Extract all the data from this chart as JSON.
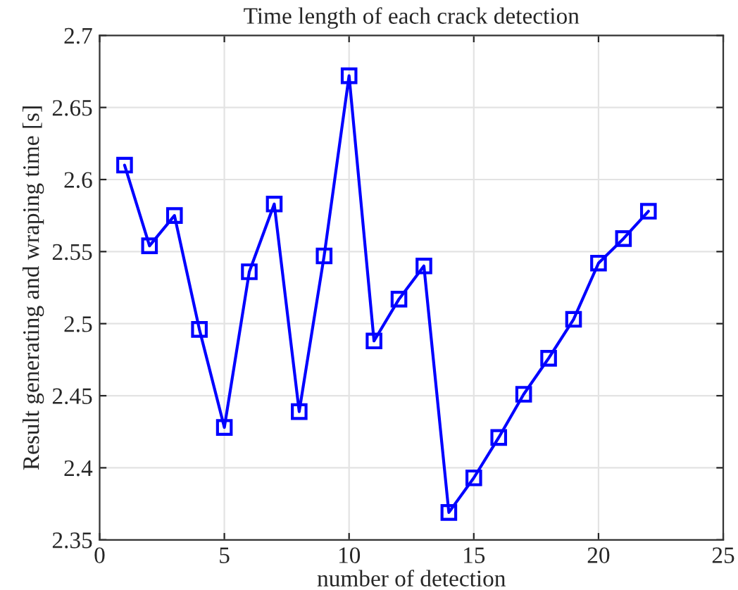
{
  "chart_data": {
    "type": "line",
    "title": "Time length of each crack detection",
    "xlabel": "number of detection",
    "ylabel": "Result generating and wraping time [s]",
    "x": [
      1,
      2,
      3,
      4,
      5,
      6,
      7,
      8,
      9,
      10,
      11,
      12,
      13,
      14,
      15,
      16,
      17,
      18,
      19,
      20,
      21,
      22
    ],
    "series": [
      {
        "color": "#0000ff",
        "values": [
          2.61,
          2.554,
          2.575,
          2.496,
          2.428,
          2.536,
          2.583,
          2.439,
          2.547,
          2.672,
          2.488,
          2.517,
          2.54,
          2.369,
          2.393,
          2.421,
          2.451,
          2.476,
          2.503,
          2.542,
          2.559,
          2.578
        ]
      }
    ],
    "xlim": [
      0,
      25
    ],
    "xticks": [
      0,
      5,
      10,
      15,
      20,
      25
    ],
    "ylim": [
      2.35,
      2.7
    ],
    "yticks": [
      2.35,
      2.4,
      2.45,
      2.5,
      2.55,
      2.6,
      2.65,
      2.7
    ],
    "grid": true,
    "marker": "square",
    "line_style": "solid"
  }
}
